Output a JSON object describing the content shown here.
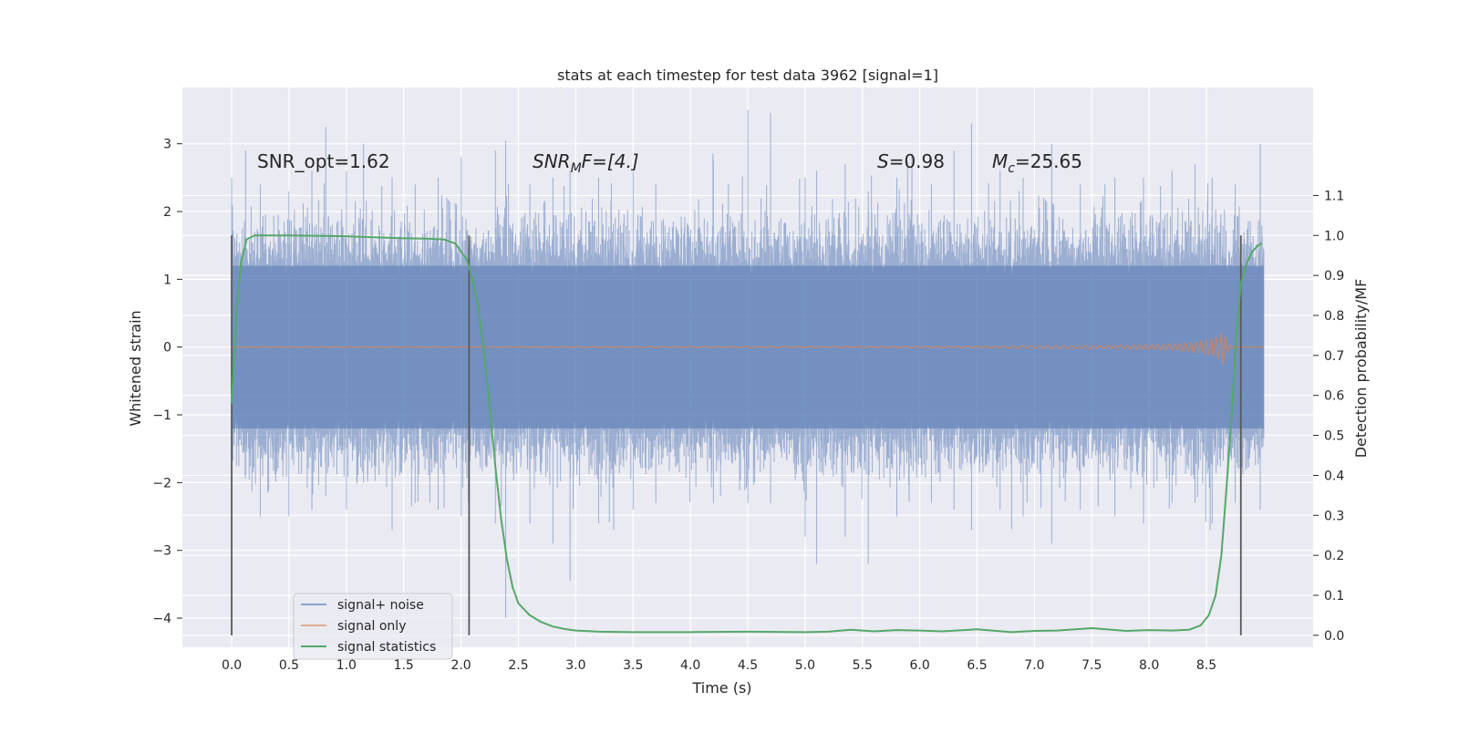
{
  "chart_data": {
    "type": "line",
    "title": "stats at each timestep for test data 3962 [signal=1]",
    "xlabel": "Time (s)",
    "ylabel": "Whitened strain",
    "y2label": "Detection probability/MF",
    "xlim": [
      -0.43,
      9.43
    ],
    "ylim": [
      -4.43,
      3.83
    ],
    "y2lim": [
      -0.03,
      1.37
    ],
    "xticks": [
      "0.0",
      "0.5",
      "1.0",
      "1.5",
      "2.0",
      "2.5",
      "3.0",
      "3.5",
      "4.0",
      "4.5",
      "5.0",
      "5.5",
      "6.0",
      "6.5",
      "7.0",
      "7.5",
      "8.0",
      "8.5"
    ],
    "yticks": [
      "3",
      "2",
      "1",
      "0",
      "−1",
      "−2",
      "−3",
      "−4"
    ],
    "y2ticks": [
      "1.1",
      "1.0",
      "0.9",
      "0.8",
      "0.7",
      "0.6",
      "0.5",
      "0.4",
      "0.3",
      "0.2",
      "0.1",
      "0.0"
    ],
    "grid": true,
    "legend_position": "lower-left",
    "annotations": {
      "snr_opt": "SNR_opt=1.62",
      "snr_mf_base": "SNR",
      "snr_mf_sub": "M",
      "snr_mf_rest": "F=[4.]",
      "s_var": "S",
      "s_rest": "=0.98",
      "mc_var": "M",
      "mc_sub": "c",
      "mc_rest": "=25.65"
    },
    "vlines_x": [
      0.0,
      2.07,
      8.8
    ],
    "vlines_ylim_right": [
      0.0,
      1.0
    ],
    "colors": {
      "noise": "#4c72b0",
      "signal": "#dd8452",
      "stats": "#55a868",
      "vline": "#595959",
      "plot_bg": "#eaeaf2",
      "grid": "#ffffff"
    },
    "series": [
      {
        "name": "signal+ noise",
        "axis": "left",
        "style": "dense-noise",
        "x_range": [
          0.0,
          9.0
        ],
        "band": [
          -1.2,
          1.2
        ],
        "peaks": [
          [
            0.0,
            2.5,
            -3.2
          ],
          [
            0.12,
            2.9,
            -1.9
          ],
          [
            0.25,
            2.4,
            -2.5
          ],
          [
            0.5,
            2.3,
            -2.5
          ],
          [
            0.7,
            2.6,
            -2.4
          ],
          [
            0.82,
            3.25,
            -2.2
          ],
          [
            1.0,
            2.6,
            -2.4
          ],
          [
            1.15,
            3.0,
            -2.0
          ],
          [
            1.4,
            2.5,
            -2.7
          ],
          [
            1.6,
            2.4,
            -2.3
          ],
          [
            1.8,
            2.5,
            -2.4
          ],
          [
            2.0,
            2.8,
            -2.5
          ],
          [
            2.3,
            2.9,
            -2.6
          ],
          [
            2.39,
            3.05,
            -4.0
          ],
          [
            2.6,
            2.4,
            -2.6
          ],
          [
            2.8,
            2.5,
            -2.9
          ],
          [
            2.95,
            2.6,
            -3.45
          ],
          [
            3.2,
            2.5,
            -2.6
          ],
          [
            3.5,
            2.6,
            -2.4
          ],
          [
            3.7,
            2.4,
            -2.3
          ],
          [
            4.2,
            2.75,
            -2.3
          ],
          [
            4.5,
            3.5,
            -2.3
          ],
          [
            4.7,
            3.45,
            -2.3
          ],
          [
            5.0,
            2.5,
            -2.8
          ],
          [
            5.1,
            2.6,
            -3.2
          ],
          [
            5.35,
            2.7,
            -2.8
          ],
          [
            5.55,
            2.3,
            -3.2
          ],
          [
            5.8,
            2.5,
            -2.5
          ],
          [
            6.1,
            2.4,
            -2.3
          ],
          [
            6.3,
            2.9,
            -2.4
          ],
          [
            6.45,
            3.3,
            -2.7
          ],
          [
            6.7,
            2.6,
            -2.4
          ],
          [
            6.9,
            2.5,
            -2.5
          ],
          [
            7.15,
            3.0,
            -2.9
          ],
          [
            7.4,
            2.4,
            -2.4
          ],
          [
            7.7,
            2.5,
            -2.5
          ],
          [
            7.95,
            2.5,
            -2.6
          ],
          [
            8.2,
            2.6,
            -2.3
          ],
          [
            8.4,
            2.7,
            -2.3
          ],
          [
            8.55,
            2.5,
            -2.6
          ],
          [
            8.75,
            2.4,
            -2.3
          ],
          [
            8.97,
            3.0,
            -2.4
          ]
        ]
      },
      {
        "name": "signal only",
        "axis": "left",
        "style": "chirp",
        "x_range": [
          0.0,
          9.0
        ],
        "peak_x": 8.65,
        "peak_amplitude": 0.3
      },
      {
        "name": "signal statistics",
        "axis": "right",
        "style": "line",
        "x": [
          0.0,
          0.04,
          0.08,
          0.13,
          0.2,
          0.3,
          0.5,
          1.0,
          1.5,
          1.7,
          1.85,
          1.95,
          2.0,
          2.05,
          2.1,
          2.15,
          2.2,
          2.25,
          2.3,
          2.35,
          2.4,
          2.45,
          2.5,
          2.6,
          2.7,
          2.8,
          2.9,
          3.0,
          3.2,
          3.5,
          4.0,
          4.5,
          5.0,
          5.2,
          5.4,
          5.6,
          5.8,
          6.0,
          6.2,
          6.5,
          6.8,
          7.0,
          7.2,
          7.5,
          7.8,
          8.0,
          8.2,
          8.35,
          8.45,
          8.52,
          8.58,
          8.63,
          8.67,
          8.72,
          8.76,
          8.8,
          8.85,
          8.9,
          8.95,
          8.98
        ],
        "y": [
          0.58,
          0.8,
          0.93,
          0.99,
          1.0,
          1.0,
          1.0,
          0.998,
          0.993,
          0.992,
          0.99,
          0.98,
          0.96,
          0.94,
          0.89,
          0.82,
          0.71,
          0.57,
          0.42,
          0.29,
          0.19,
          0.12,
          0.08,
          0.05,
          0.033,
          0.022,
          0.016,
          0.012,
          0.009,
          0.008,
          0.008,
          0.009,
          0.008,
          0.009,
          0.014,
          0.01,
          0.013,
          0.012,
          0.01,
          0.015,
          0.008,
          0.011,
          0.012,
          0.018,
          0.011,
          0.013,
          0.012,
          0.014,
          0.025,
          0.05,
          0.1,
          0.2,
          0.35,
          0.55,
          0.75,
          0.88,
          0.93,
          0.96,
          0.975,
          0.98
        ]
      }
    ]
  }
}
